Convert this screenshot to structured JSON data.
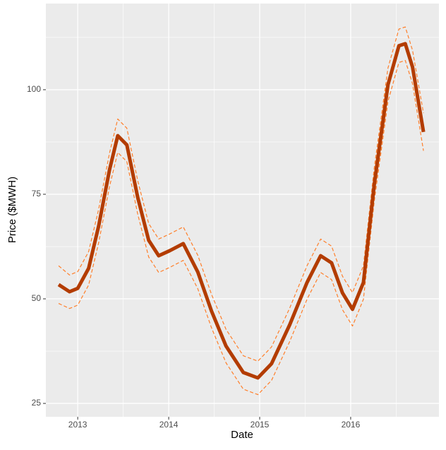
{
  "chart_data": {
    "type": "line",
    "xlabel": "Date",
    "ylabel": "Price ($MWH)",
    "x": [
      2012.79,
      2012.91,
      2013.0,
      2013.12,
      2013.23,
      2013.35,
      2013.44,
      2013.54,
      2013.66,
      2013.78,
      2013.89,
      2014.01,
      2014.16,
      2014.32,
      2014.47,
      2014.63,
      2014.82,
      2014.98,
      2015.13,
      2015.33,
      2015.52,
      2015.67,
      2015.79,
      2015.91,
      2016.02,
      2016.14,
      2016.26,
      2016.41,
      2016.53,
      2016.6,
      2016.68,
      2016.8
    ],
    "series": [
      {
        "color": "#ff7f2a",
        "linestyle": "dashed",
        "values": [
          57.9,
          55.7,
          56.5,
          61.3,
          71.4,
          84.9,
          93.0,
          90.8,
          78.2,
          68.0,
          64.3,
          65.5,
          67.2,
          60.4,
          51.1,
          42.7,
          36.4,
          35.1,
          38.5,
          47.8,
          57.9,
          64.3,
          62.6,
          55.4,
          51.5,
          57.9,
          81.5,
          105.2,
          114.5,
          115.0,
          109.4,
          94.4
        ]
      },
      {
        "color": "#ff7f2a",
        "linestyle": "dashed",
        "values": [
          48.9,
          47.7,
          48.5,
          53.3,
          63.4,
          76.9,
          85.0,
          82.8,
          70.2,
          60.0,
          56.3,
          57.5,
          59.2,
          52.4,
          43.1,
          34.7,
          28.4,
          27.1,
          30.5,
          39.8,
          49.9,
          56.3,
          54.6,
          47.4,
          43.5,
          49.9,
          73.5,
          97.2,
          106.5,
          107.0,
          101.4,
          85.4
        ]
      },
      {
        "color": "#b33c00",
        "linestyle": "solid",
        "values": [
          53.4,
          51.7,
          52.5,
          57.3,
          67.4,
          80.9,
          89.0,
          86.8,
          74.2,
          64.0,
          60.3,
          61.5,
          63.2,
          56.4,
          47.1,
          38.7,
          32.4,
          31.1,
          34.5,
          43.8,
          53.9,
          60.3,
          58.6,
          51.4,
          47.5,
          53.9,
          77.5,
          101.2,
          110.5,
          111.0,
          105.4,
          89.9
        ]
      }
    ],
    "xlim": [
      2012.65,
      2016.97
    ],
    "xticks": [
      2013,
      2014,
      2015,
      2016
    ],
    "ylim": [
      21.8,
      120.6
    ],
    "yticks": [
      25,
      50,
      75,
      100
    ],
    "grid": true
  }
}
